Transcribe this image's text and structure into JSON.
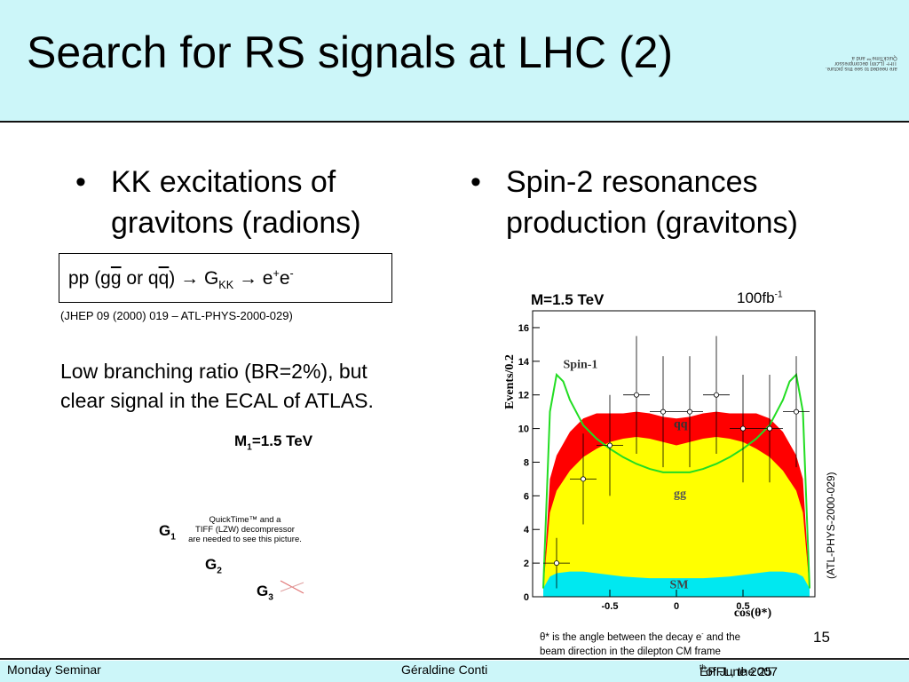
{
  "title": "Search for RS signals at LHC (2)",
  "title_corner_note": [
    "are needed to see this picture.",
    "TIFF (LZW) decompressor",
    "QuickTime™ and a"
  ],
  "left": {
    "bullet_line1": "KK excitations of",
    "bullet_line2": "gravitons (radions)",
    "formula": {
      "pp": "pp (g",
      "g_bar": "g",
      "or": " or q",
      "q_bar": "q",
      "close": ")",
      "arrow1": " → ",
      "G": "G",
      "G_sub": "KK",
      "arrow2": " → ",
      "e1": "e",
      "plus": "+",
      "e2": "e",
      "minus": "-"
    },
    "reference": "(JHEP 09 (2000) 019 – ATL-PHYS-2000-029)",
    "text_line1": "Low branching ratio (BR=2%), but",
    "text_line2": "clear signal in the ECAL of ATLAS.",
    "m1_label": "M",
    "m1_sub": "1",
    "m1_value": "=1.5 TeV",
    "g1": "G",
    "g1_sub": "1",
    "g2": "G",
    "g2_sub": "2",
    "g3": "G",
    "g3_sub": "3",
    "qt_line1": "QuickTime™ and a",
    "qt_line2": "TIFF (LZW) decompressor",
    "qt_line3": "are needed to see this picture."
  },
  "right": {
    "bullet_line1": "Spin-2 resonances",
    "bullet_line2": "production (gravitons)",
    "mass_label": "M=1.5 TeV",
    "lumi": "100fb",
    "lumi_exp": "-1",
    "atl_ref": "(ATL-PHYS-2000-029)",
    "theta_note_a": "θ* is the angle between the decay e",
    "theta_note_exp": "-",
    "theta_note_b": " and the",
    "theta_note_line2": "beam direction in the dilepton CM frame"
  },
  "page_number": "15",
  "footer": {
    "left": "Monday Seminar",
    "center": "Géraldine Conti",
    "right_a": "EPFL, the 25",
    "right_sup": "th",
    "right_b": " of June 2007"
  },
  "chart_data": {
    "type": "area",
    "xlabel": "cos(θ*)",
    "ylabel": "Events/0.2",
    "xlim": [
      -1,
      1
    ],
    "ylim": [
      0,
      17
    ],
    "x_ticks": [
      "-0.5",
      "0",
      "0.5"
    ],
    "y_ticks": [
      "0",
      "2",
      "4",
      "6",
      "8",
      "10",
      "12",
      "14",
      "16"
    ],
    "annotations": [
      "Spin-1",
      "qq",
      "gg",
      "SM"
    ],
    "colors": {
      "SM": "#00e8f0",
      "gg": "#ffff00",
      "qq": "#ff0000",
      "spin1": "#22dd22"
    },
    "x": [
      -1.0,
      -0.95,
      -0.9,
      -0.8,
      -0.7,
      -0.6,
      -0.5,
      -0.4,
      -0.3,
      -0.2,
      -0.1,
      0.0,
      0.1,
      0.2,
      0.3,
      0.4,
      0.5,
      0.6,
      0.7,
      0.8,
      0.9,
      0.95,
      1.0
    ],
    "series": [
      {
        "name": "SM",
        "values": [
          0.5,
          1.2,
          1.4,
          1.5,
          1.5,
          1.4,
          1.3,
          1.2,
          1.15,
          1.1,
          1.1,
          1.1,
          1.1,
          1.1,
          1.15,
          1.2,
          1.3,
          1.4,
          1.5,
          1.5,
          1.4,
          1.2,
          0.5
        ]
      },
      {
        "name": "gg",
        "values": [
          0.5,
          5.0,
          6.3,
          7.5,
          8.3,
          8.8,
          9.2,
          9.4,
          9.5,
          9.4,
          9.2,
          9.0,
          9.2,
          9.4,
          9.5,
          9.4,
          9.2,
          8.8,
          8.3,
          7.5,
          6.3,
          5.0,
          0.5
        ]
      },
      {
        "name": "qq",
        "values": [
          0.5,
          7.0,
          8.4,
          9.8,
          10.6,
          10.9,
          10.9,
          10.9,
          11.0,
          10.9,
          10.7,
          10.6,
          10.7,
          10.9,
          11.0,
          10.9,
          10.9,
          10.9,
          10.6,
          9.8,
          8.4,
          7.0,
          0.5
        ]
      }
    ],
    "spin1_curve": {
      "x": [
        -1.0,
        -0.95,
        -0.9,
        -0.85,
        -0.8,
        -0.7,
        -0.6,
        -0.5,
        -0.4,
        -0.3,
        -0.2,
        -0.1,
        0.0,
        0.1,
        0.2,
        0.3,
        0.4,
        0.5,
        0.6,
        0.7,
        0.8,
        0.85,
        0.9,
        0.95,
        1.0
      ],
      "values": [
        0.5,
        11.0,
        13.2,
        12.8,
        11.7,
        10.2,
        9.4,
        8.8,
        8.3,
        7.9,
        7.6,
        7.4,
        7.4,
        7.4,
        7.6,
        7.9,
        8.3,
        8.8,
        9.4,
        10.2,
        11.7,
        12.8,
        13.2,
        11.0,
        0.5
      ]
    },
    "points": [
      {
        "x": -0.9,
        "y": 2.0,
        "err": 1.5
      },
      {
        "x": -0.7,
        "y": 7.0,
        "err": 2.7
      },
      {
        "x": -0.5,
        "y": 9.0,
        "err": 3.0
      },
      {
        "x": -0.3,
        "y": 12.0,
        "err": 3.5
      },
      {
        "x": -0.1,
        "y": 11.0,
        "err": 3.3
      },
      {
        "x": 0.1,
        "y": 11.0,
        "err": 3.3
      },
      {
        "x": 0.3,
        "y": 12.0,
        "err": 3.5
      },
      {
        "x": 0.5,
        "y": 10.0,
        "err": 3.2
      },
      {
        "x": 0.7,
        "y": 10.0,
        "err": 3.2
      },
      {
        "x": 0.9,
        "y": 11.0,
        "err": 3.3
      }
    ]
  }
}
